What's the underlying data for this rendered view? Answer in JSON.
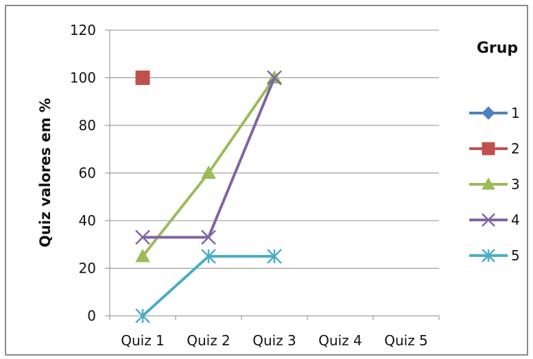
{
  "chart_data": {
    "type": "line",
    "ylabel": "Quiz valores em %",
    "xlabel": "",
    "categories": [
      "Quiz 1",
      "Quiz 2",
      "Quiz 3",
      "Quiz 4",
      "Quiz 5"
    ],
    "ylim": [
      0,
      120
    ],
    "yticks": [
      0,
      20,
      40,
      60,
      80,
      100,
      120
    ],
    "grid": true,
    "legend": {
      "title": "Grup",
      "placement": "right"
    },
    "series": [
      {
        "name": "1",
        "color": "#4F81BD",
        "marker": "diamond",
        "values": [
          null,
          null,
          null,
          null,
          null
        ]
      },
      {
        "name": "2",
        "color": "#C0504D",
        "marker": "square",
        "values": [
          100,
          null,
          null,
          null,
          null
        ]
      },
      {
        "name": "3",
        "color": "#9BBB59",
        "marker": "triangle",
        "values": [
          25,
          60,
          100,
          null,
          null
        ]
      },
      {
        "name": "4",
        "color": "#8064A2",
        "marker": "x",
        "values": [
          33,
          33,
          100,
          null,
          null
        ]
      },
      {
        "name": "5",
        "color": "#4BACC6",
        "marker": "star",
        "values": [
          0,
          25,
          25,
          null,
          null
        ]
      }
    ]
  }
}
